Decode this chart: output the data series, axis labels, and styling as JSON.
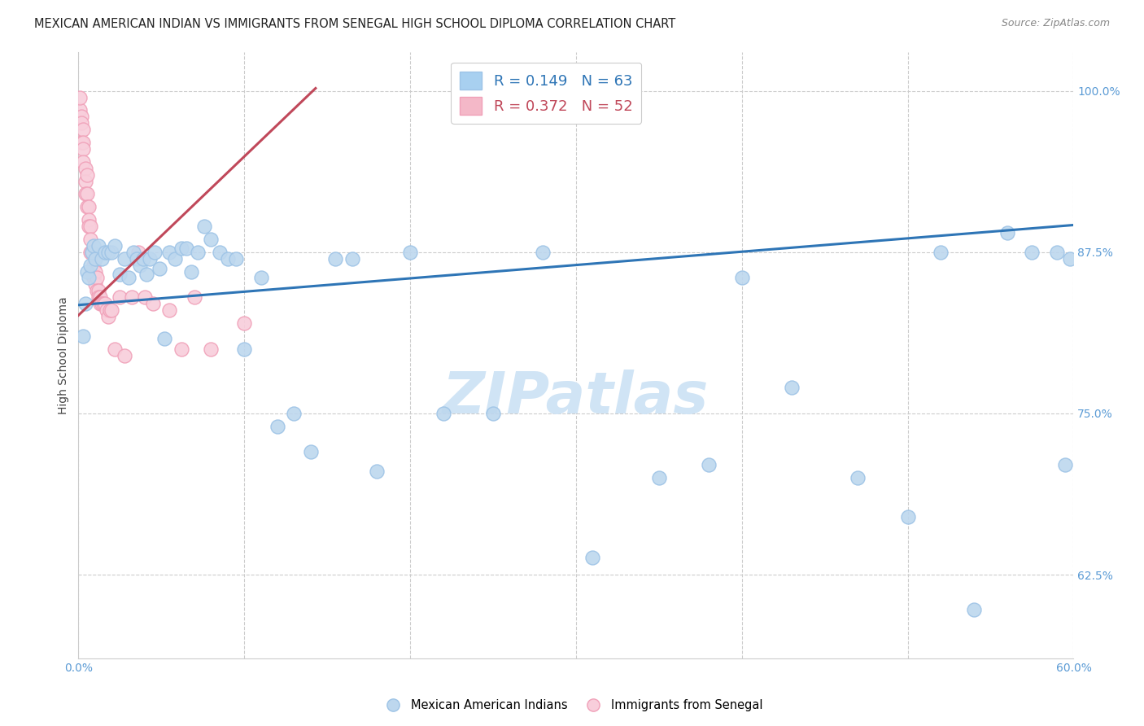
{
  "title": "MEXICAN AMERICAN INDIAN VS IMMIGRANTS FROM SENEGAL HIGH SCHOOL DIPLOMA CORRELATION CHART",
  "source": "Source: ZipAtlas.com",
  "ylabel": "High School Diploma",
  "watermark": "ZIPatlas",
  "xlim": [
    0.0,
    0.6
  ],
  "ylim": [
    0.56,
    1.03
  ],
  "ytick_labels": [
    "100.0%",
    "87.5%",
    "75.0%",
    "62.5%"
  ],
  "ytick_values": [
    1.0,
    0.875,
    0.75,
    0.625
  ],
  "legend1_label": "R = 0.149   N = 63",
  "legend2_label": "R = 0.372   N = 52",
  "legend_color1": "#A8D0F0",
  "legend_color2": "#F4B8C8",
  "trendline1_color": "#2E75B6",
  "trendline2_color": "#C0485A",
  "scatter1_color": "#BDD7EE",
  "scatter2_color": "#F8CEDB",
  "scatter1_edge": "#9DC3E6",
  "scatter2_edge": "#F0A0B8",
  "blue_points_x": [
    0.003,
    0.004,
    0.005,
    0.006,
    0.007,
    0.008,
    0.009,
    0.01,
    0.012,
    0.014,
    0.016,
    0.018,
    0.02,
    0.022,
    0.025,
    0.028,
    0.03,
    0.033,
    0.035,
    0.037,
    0.039,
    0.041,
    0.043,
    0.046,
    0.049,
    0.052,
    0.055,
    0.058,
    0.062,
    0.065,
    0.068,
    0.072,
    0.076,
    0.08,
    0.085,
    0.09,
    0.095,
    0.1,
    0.11,
    0.12,
    0.13,
    0.14,
    0.155,
    0.165,
    0.18,
    0.2,
    0.22,
    0.25,
    0.28,
    0.31,
    0.35,
    0.38,
    0.4,
    0.43,
    0.47,
    0.5,
    0.52,
    0.54,
    0.56,
    0.575,
    0.59,
    0.595,
    0.598
  ],
  "blue_points_y": [
    0.81,
    0.835,
    0.86,
    0.855,
    0.865,
    0.875,
    0.88,
    0.87,
    0.88,
    0.87,
    0.875,
    0.875,
    0.875,
    0.88,
    0.858,
    0.87,
    0.855,
    0.875,
    0.87,
    0.865,
    0.87,
    0.858,
    0.87,
    0.875,
    0.862,
    0.808,
    0.875,
    0.87,
    0.878,
    0.878,
    0.86,
    0.875,
    0.895,
    0.885,
    0.875,
    0.87,
    0.87,
    0.8,
    0.855,
    0.74,
    0.75,
    0.72,
    0.87,
    0.87,
    0.705,
    0.875,
    0.75,
    0.75,
    0.875,
    0.638,
    0.7,
    0.71,
    0.855,
    0.77,
    0.7,
    0.67,
    0.875,
    0.598,
    0.89,
    0.875,
    0.875,
    0.71,
    0.87
  ],
  "pink_points_x": [
    0.001,
    0.001,
    0.002,
    0.002,
    0.002,
    0.003,
    0.003,
    0.003,
    0.003,
    0.004,
    0.004,
    0.004,
    0.005,
    0.005,
    0.005,
    0.006,
    0.006,
    0.006,
    0.007,
    0.007,
    0.007,
    0.008,
    0.008,
    0.009,
    0.009,
    0.01,
    0.01,
    0.011,
    0.011,
    0.012,
    0.012,
    0.013,
    0.013,
    0.014,
    0.015,
    0.016,
    0.017,
    0.018,
    0.019,
    0.02,
    0.022,
    0.025,
    0.028,
    0.032,
    0.036,
    0.04,
    0.045,
    0.055,
    0.062,
    0.07,
    0.08,
    0.1
  ],
  "pink_points_y": [
    0.985,
    0.995,
    0.98,
    0.975,
    0.96,
    0.97,
    0.96,
    0.955,
    0.945,
    0.94,
    0.93,
    0.92,
    0.935,
    0.92,
    0.91,
    0.91,
    0.9,
    0.895,
    0.895,
    0.885,
    0.875,
    0.875,
    0.86,
    0.865,
    0.855,
    0.86,
    0.85,
    0.855,
    0.845,
    0.845,
    0.84,
    0.84,
    0.835,
    0.835,
    0.835,
    0.835,
    0.83,
    0.825,
    0.83,
    0.83,
    0.8,
    0.84,
    0.795,
    0.84,
    0.875,
    0.84,
    0.835,
    0.83,
    0.8,
    0.84,
    0.8,
    0.82
  ],
  "blue_trend_x": [
    0.0,
    0.6
  ],
  "blue_trend_y": [
    0.834,
    0.896
  ],
  "pink_trend_x": [
    0.0,
    0.143
  ],
  "pink_trend_y": [
    0.826,
    1.002
  ],
  "title_fontsize": 10.5,
  "source_fontsize": 9,
  "axis_fontsize": 10,
  "tick_fontsize": 10,
  "legend_fontsize": 13,
  "watermark_fontsize": 52,
  "watermark_color": "#D0E4F5",
  "background_color": "#FFFFFF",
  "grid_color": "#CCCCCC",
  "tick_color": "#5B9BD5",
  "title_color": "#222222",
  "source_color": "#888888"
}
